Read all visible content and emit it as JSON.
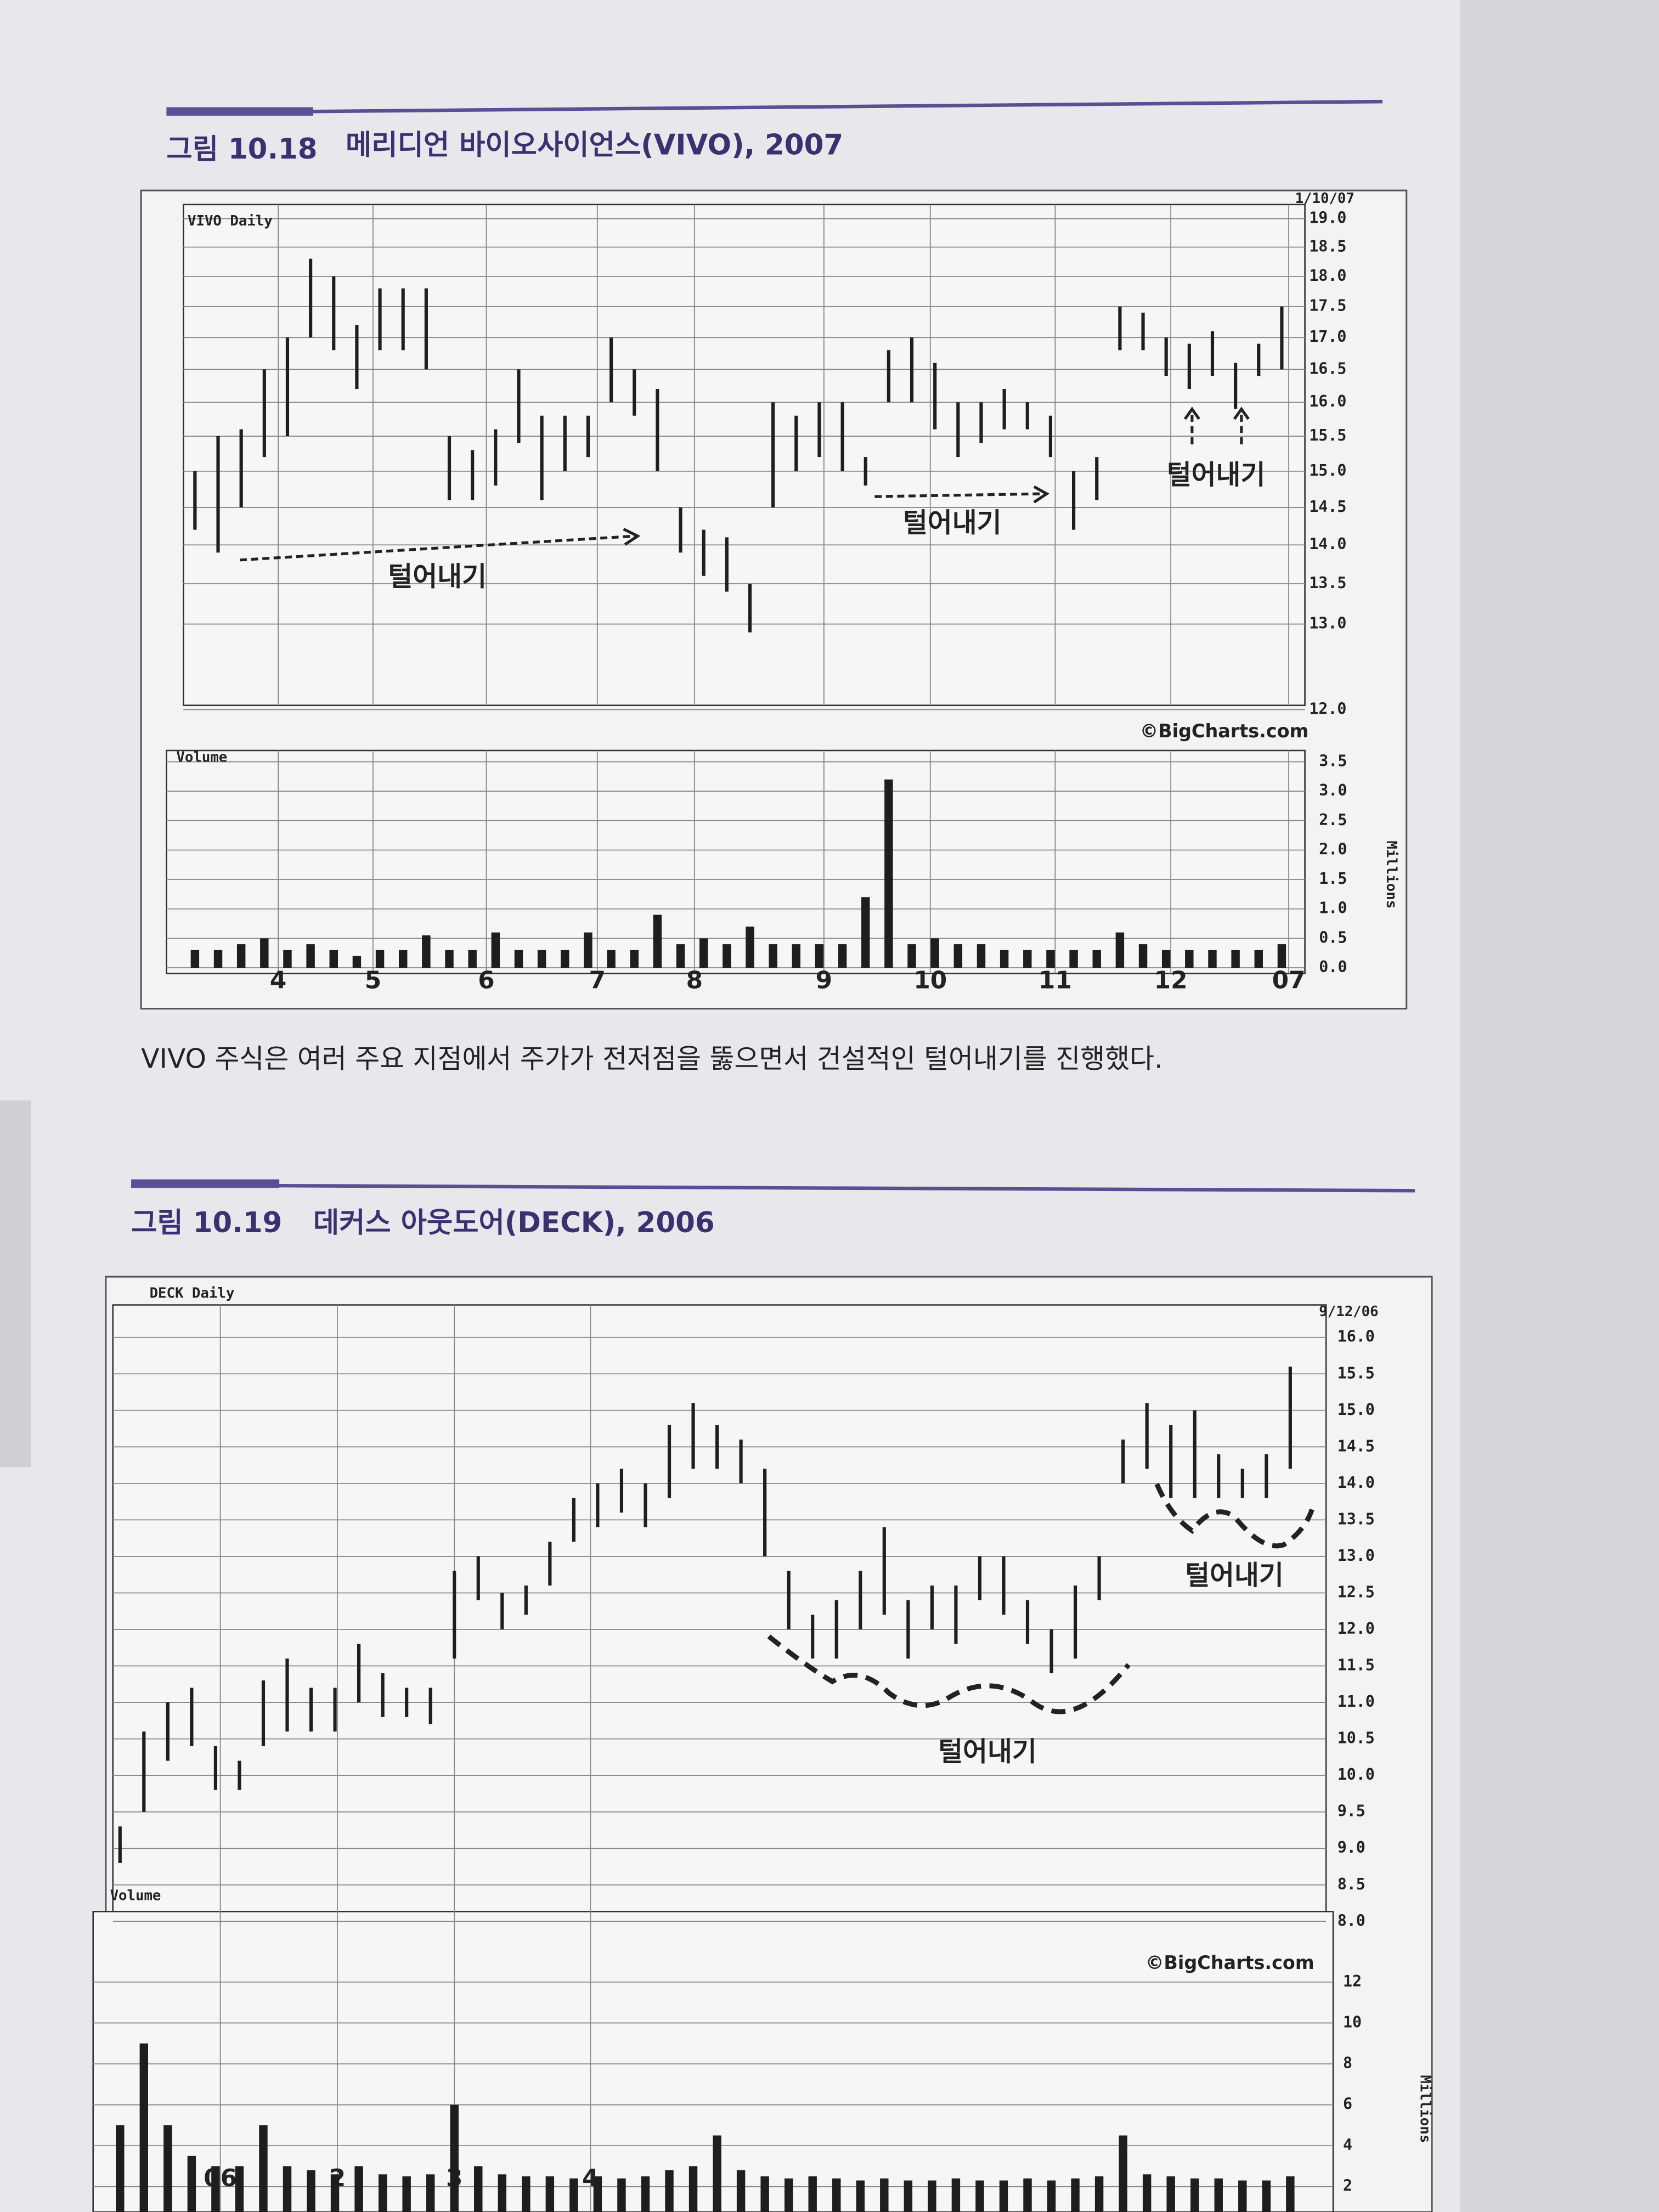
{
  "chart_data": [
    {
      "type": "hilo",
      "figure_label": "그림 10.18",
      "title": "메리디언 바이오사이언스(VIVO), 2007",
      "caption": "VIVO 주식은 여러 주요 지점에서 주가가 전저점을 뚫으면서 건설적인 털어내기를 진행했다.",
      "date": "1/10/07",
      "source": "©BigCharts.com",
      "annotations": [
        "털어내기",
        "털어내기",
        "털어내기"
      ],
      "log": true,
      "grid": true,
      "series": [
        {
          "name": "VIVO Daily",
          "color": "#1e1e1e",
          "high": [
            15.0,
            15.5,
            15.6,
            16.5,
            17.0,
            18.3,
            18.0,
            17.2,
            17.8,
            17.8,
            17.8,
            15.5,
            15.3,
            15.6,
            16.5,
            15.8,
            15.8,
            15.8,
            17.0,
            16.5,
            16.2,
            14.5,
            14.2,
            14.1,
            13.5,
            16.0,
            15.8,
            16.0,
            16.0,
            15.2,
            16.8,
            17.0,
            16.6,
            16.0,
            16.0,
            16.2,
            16.0,
            15.8,
            15.0,
            15.2,
            17.5,
            17.4,
            17.0,
            16.9,
            17.1,
            16.6,
            16.9,
            17.5
          ],
          "low": [
            14.2,
            13.9,
            14.5,
            15.2,
            15.5,
            17.0,
            16.8,
            16.2,
            16.8,
            16.8,
            16.5,
            14.6,
            14.6,
            14.8,
            15.4,
            14.6,
            15.0,
            15.2,
            16.0,
            15.8,
            15.0,
            13.9,
            13.6,
            13.4,
            12.9,
            14.5,
            15.0,
            15.2,
            15.0,
            14.8,
            16.0,
            16.0,
            15.6,
            15.2,
            15.4,
            15.6,
            15.6,
            15.2,
            14.2,
            14.6,
            16.8,
            16.8,
            16.4,
            16.2,
            16.4,
            15.9,
            16.4,
            16.5
          ]
        }
      ],
      "ylim": [
        12,
        19
      ],
      "yticks": [
        {
          "value": 19,
          "label": "19.0"
        },
        {
          "value": 18.5,
          "label": "18.5"
        },
        {
          "value": 18,
          "label": "18.0"
        },
        {
          "value": 17.5,
          "label": "17.5"
        },
        {
          "value": 17,
          "label": "17.0"
        },
        {
          "value": 16.5,
          "label": "16.5"
        },
        {
          "value": 16,
          "label": "16.0"
        },
        {
          "value": 15.5,
          "label": "15.5"
        },
        {
          "value": 15,
          "label": "15.0"
        },
        {
          "value": 14.5,
          "label": "14.5"
        },
        {
          "value": 14,
          "label": "14.0"
        },
        {
          "value": 13.5,
          "label": "13.5"
        },
        {
          "value": 13,
          "label": "13.0"
        },
        {
          "value": 12,
          "label": "12.0"
        }
      ],
      "xlim": [
        -0.5,
        48
      ],
      "xticks": [
        {
          "value": 3.6,
          "label": "4"
        },
        {
          "value": 7.7,
          "label": "5"
        },
        {
          "value": 12.6,
          "label": "6"
        },
        {
          "value": 17.4,
          "label": "7"
        },
        {
          "value": 21.6,
          "label": "8"
        },
        {
          "value": 27.2,
          "label": "9"
        },
        {
          "value": 31.8,
          "label": "10"
        },
        {
          "value": 37.2,
          "label": "11"
        },
        {
          "value": 42.2,
          "label": "12"
        },
        {
          "value": 47.3,
          "label": "07"
        }
      ],
      "volume": {
        "name": "Volume",
        "unit": "Millions",
        "color": "#1e1e1e",
        "values": [
          0.3,
          0.3,
          0.4,
          0.5,
          0.3,
          0.4,
          0.3,
          0.2,
          0.3,
          0.3,
          0.55,
          0.3,
          0.3,
          0.6,
          0.3,
          0.3,
          0.3,
          0.6,
          0.3,
          0.3,
          0.9,
          0.4,
          0.5,
          0.4,
          0.7,
          0.4,
          0.4,
          0.4,
          0.4,
          1.2,
          3.2,
          0.4,
          0.5,
          0.4,
          0.4,
          0.3,
          0.3,
          0.3,
          0.3,
          0.3,
          0.6,
          0.4,
          0.3,
          0.3,
          0.3,
          0.3,
          0.3,
          0.4
        ],
        "ylim": [
          0,
          3.5
        ],
        "yticks": [
          {
            "value": 3.5,
            "label": "3.5"
          },
          {
            "value": 3,
            "label": "3.0"
          },
          {
            "value": 2.5,
            "label": "2.5"
          },
          {
            "value": 2,
            "label": "2.0"
          },
          {
            "value": 1.5,
            "label": "1.5"
          },
          {
            "value": 1,
            "label": "1.0"
          },
          {
            "value": 0.5,
            "label": "0.5"
          },
          {
            "value": 0,
            "label": "0.0"
          }
        ]
      }
    },
    {
      "type": "hilo",
      "figure_label": "그림 10.19",
      "title": "데커스 아웃도어(DECK), 2006",
      "date": "9/12/06",
      "source": "©BigCharts.com",
      "annotations": [
        "털어내기",
        "털어내기"
      ],
      "log": false,
      "grid": true,
      "series": [
        {
          "name": "DECK Daily",
          "color": "#1e1e1e",
          "high": [
            9.3,
            10.6,
            11.0,
            11.2,
            10.4,
            10.2,
            11.3,
            11.6,
            11.2,
            11.2,
            11.8,
            11.4,
            11.2,
            11.2,
            12.8,
            13.0,
            12.5,
            12.6,
            13.2,
            13.8,
            14.0,
            14.2,
            14.0,
            14.8,
            15.1,
            14.8,
            14.6,
            14.2,
            12.8,
            12.2,
            12.4,
            12.8,
            13.4,
            12.4,
            12.6,
            12.6,
            13.0,
            13.0,
            12.4,
            12.0,
            12.6,
            13.0,
            14.6,
            15.1,
            14.8,
            15.0,
            14.4,
            14.2,
            14.4,
            15.6
          ],
          "low": [
            8.8,
            9.5,
            10.2,
            10.4,
            9.8,
            9.8,
            10.4,
            10.6,
            10.6,
            10.6,
            11.0,
            10.8,
            10.8,
            10.7,
            11.6,
            12.4,
            12.0,
            12.2,
            12.6,
            13.2,
            13.4,
            13.6,
            13.4,
            13.8,
            14.2,
            14.2,
            14.0,
            13.0,
            12.0,
            11.6,
            11.6,
            12.0,
            12.2,
            11.6,
            12.0,
            11.8,
            12.4,
            12.2,
            11.8,
            11.4,
            11.6,
            12.4,
            14.0,
            14.2,
            13.8,
            13.8,
            13.8,
            13.8,
            13.8,
            14.2
          ]
        }
      ],
      "ylim": [
        8,
        16
      ],
      "yticks": [
        {
          "value": 16,
          "label": "16.0"
        },
        {
          "value": 15.5,
          "label": "15.5"
        },
        {
          "value": 15,
          "label": "15.0"
        },
        {
          "value": 14.5,
          "label": "14.5"
        },
        {
          "value": 14,
          "label": "14.0"
        },
        {
          "value": 13.5,
          "label": "13.5"
        },
        {
          "value": 13,
          "label": "13.0"
        },
        {
          "value": 12.5,
          "label": "12.5"
        },
        {
          "value": 12,
          "label": "12.0"
        },
        {
          "value": 11.5,
          "label": "11.5"
        },
        {
          "value": 11,
          "label": "11.0"
        },
        {
          "value": 10.5,
          "label": "10.5"
        },
        {
          "value": 10,
          "label": "10.0"
        },
        {
          "value": 9.5,
          "label": "9.5"
        },
        {
          "value": 9,
          "label": "9.0"
        },
        {
          "value": 8.5,
          "label": "8.5"
        },
        {
          "value": 8,
          "label": "8.0"
        }
      ],
      "xlim": [
        -0.3,
        50.5
      ],
      "xticks": [
        {
          "value": 4.2,
          "label": "06"
        },
        {
          "value": 9.1,
          "label": "2"
        },
        {
          "value": 14.0,
          "label": "3"
        },
        {
          "value": 19.7,
          "label": "4"
        }
      ],
      "volume": {
        "name": "Volume",
        "unit": "Millions",
        "color": "#1e1e1e",
        "values": [
          5,
          9,
          5,
          3.5,
          3,
          3,
          5,
          3,
          2.8,
          2.6,
          3,
          2.6,
          2.5,
          2.6,
          6,
          3,
          2.6,
          2.5,
          2.5,
          2.4,
          2.5,
          2.4,
          2.5,
          2.8,
          3,
          4.5,
          2.8,
          2.5,
          2.4,
          2.5,
          2.4,
          2.3,
          2.4,
          2.3,
          2.3,
          2.4,
          2.3,
          2.3,
          2.4,
          2.3,
          2.4,
          2.5,
          4.5,
          2.6,
          2.5,
          2.4,
          2.4,
          2.3,
          2.3,
          2.5
        ],
        "ylim": [
          0,
          12
        ],
        "yticks": [
          12,
          10,
          8,
          6,
          4,
          2
        ]
      }
    }
  ]
}
